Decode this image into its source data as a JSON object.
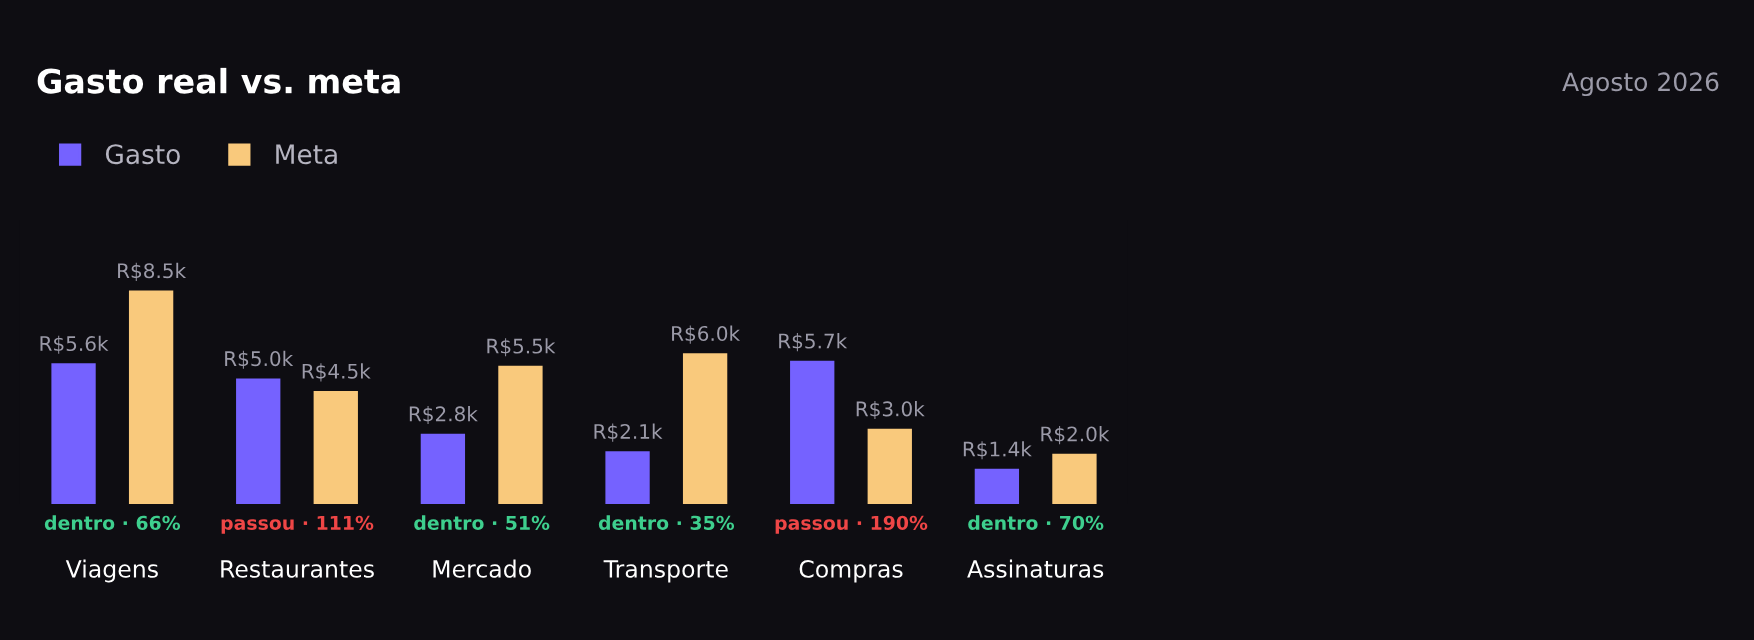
{
  "chart_data": {
    "type": "bar",
    "title": "Gasto real vs. meta",
    "subtitle": "Agosto 2026",
    "categories": [
      "Viagens",
      "Restaurantes",
      "Mercado",
      "Transporte",
      "Compras",
      "Assinaturas"
    ],
    "series": [
      {
        "name": "Gasto",
        "color": "#7562ff",
        "values": [
          5600,
          5000,
          2800,
          2100,
          5700,
          1400
        ],
        "value_labels": [
          "R$5.6k",
          "R$5.0k",
          "R$2.8k",
          "R$2.1k",
          "R$5.7k",
          "R$1.4k"
        ]
      },
      {
        "name": "Meta",
        "color": "#f9c97c",
        "values": [
          8500,
          4500,
          5500,
          6000,
          3000,
          2000
        ],
        "value_labels": [
          "R$8.5k",
          "R$4.5k",
          "R$5.5k",
          "R$6.0k",
          "R$3.0k",
          "R$2.0k"
        ]
      }
    ],
    "annotations": [
      "dentro · 66%",
      "passou · 111%",
      "dentro · 51%",
      "dentro · 35%",
      "passou · 190%",
      "dentro · 70%"
    ],
    "legend": "top left",
    "grid": false
  }
}
